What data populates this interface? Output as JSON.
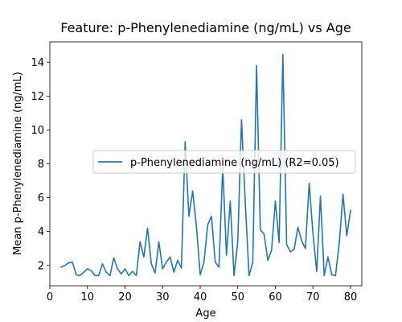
{
  "chart_data": {
    "type": "line",
    "title": "Feature: p-Phenylenediamine (ng/mL) vs Age",
    "xlabel": "Age",
    "ylabel": "Mean p-Phenylenediamine (ng/mL)",
    "xlim": [
      0,
      83
    ],
    "ylim": [
      0.8,
      15.2
    ],
    "xticks": [
      0,
      10,
      20,
      30,
      40,
      50,
      60,
      70,
      80
    ],
    "yticks": [
      2,
      4,
      6,
      8,
      10,
      12,
      14
    ],
    "grid": false,
    "legend_position": "center-right",
    "series": [
      {
        "name": "p-Phenylenediamine (ng/mL) (R2=0.05)",
        "color": "#1f77b4",
        "x": [
          3,
          4,
          5,
          6,
          7,
          8,
          9,
          10,
          11,
          12,
          13,
          14,
          15,
          16,
          17,
          18,
          19,
          20,
          21,
          22,
          23,
          24,
          25,
          26,
          27,
          28,
          29,
          30,
          31,
          32,
          33,
          34,
          35,
          36,
          37,
          38,
          39,
          40,
          41,
          42,
          43,
          44,
          45,
          46,
          47,
          48,
          49,
          50,
          51,
          52,
          53,
          54,
          55,
          56,
          57,
          58,
          59,
          60,
          61,
          62,
          63,
          64,
          65,
          66,
          67,
          68,
          69,
          70,
          71,
          72,
          73,
          74,
          75,
          76,
          77,
          78,
          79,
          80
        ],
        "y": [
          1.9,
          2.0,
          2.15,
          2.2,
          1.45,
          1.4,
          1.6,
          1.8,
          1.7,
          1.4,
          1.4,
          2.1,
          1.6,
          1.4,
          2.45,
          1.8,
          1.5,
          1.8,
          1.4,
          1.65,
          1.4,
          3.4,
          2.5,
          4.2,
          2.1,
          1.55,
          3.4,
          1.8,
          2.2,
          2.5,
          1.6,
          2.3,
          1.85,
          9.3,
          4.9,
          6.4,
          4.3,
          1.45,
          2.2,
          4.4,
          4.9,
          2.2,
          1.9,
          7.8,
          2.6,
          5.8,
          1.4,
          3.4,
          10.6,
          5.7,
          1.4,
          2.2,
          13.8,
          4.1,
          3.85,
          2.3,
          2.9,
          5.8,
          3.35,
          14.45,
          3.25,
          2.8,
          2.95,
          4.25,
          3.45,
          3.0,
          6.85,
          3.9,
          1.65,
          6.1,
          1.4,
          2.5,
          1.45,
          1.4,
          3.3,
          6.2,
          3.75,
          5.25
        ]
      }
    ]
  }
}
